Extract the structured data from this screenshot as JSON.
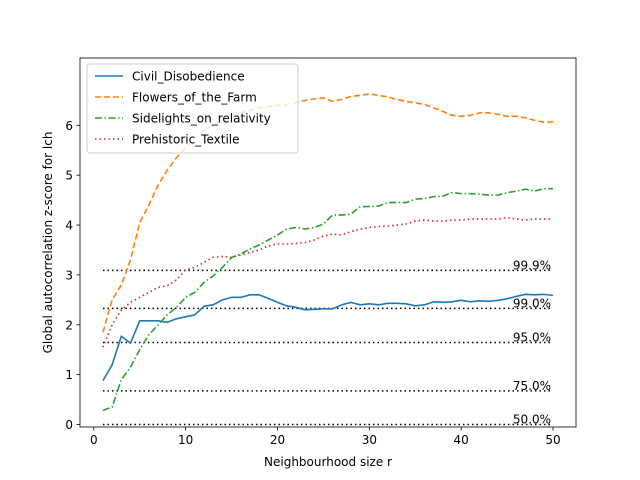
{
  "chart_data": {
    "type": "line",
    "title": "",
    "xlabel": "Neighbourhood size r",
    "ylabel": "Global autocorrelation z-score for lch",
    "xlim": [
      -1.5,
      52.5
    ],
    "ylim": [
      -0.05,
      7.35
    ],
    "xticks": [
      0,
      10,
      20,
      30,
      40,
      50
    ],
    "yticks": [
      0,
      1,
      2,
      3,
      4,
      5,
      6
    ],
    "grid": false,
    "legend_position": "top-left",
    "x": [
      1,
      2,
      3,
      4,
      5,
      6,
      7,
      8,
      9,
      10,
      11,
      12,
      13,
      14,
      15,
      16,
      17,
      18,
      19,
      20,
      21,
      22,
      23,
      24,
      25,
      26,
      27,
      28,
      29,
      30,
      31,
      32,
      33,
      34,
      35,
      36,
      37,
      38,
      39,
      40,
      41,
      42,
      43,
      44,
      45,
      46,
      47,
      48,
      49,
      50
    ],
    "series": [
      {
        "name": "Civil_Disobedience",
        "color": "#1f77b4",
        "style": "solid",
        "values": [
          0.88,
          1.2,
          1.77,
          1.63,
          2.08,
          2.08,
          2.08,
          2.05,
          2.12,
          2.16,
          2.2,
          2.37,
          2.4,
          2.5,
          2.55,
          2.55,
          2.6,
          2.6,
          2.53,
          2.45,
          2.38,
          2.35,
          2.3,
          2.31,
          2.32,
          2.32,
          2.4,
          2.45,
          2.4,
          2.42,
          2.4,
          2.43,
          2.43,
          2.42,
          2.38,
          2.4,
          2.46,
          2.45,
          2.46,
          2.49,
          2.46,
          2.48,
          2.47,
          2.49,
          2.52,
          2.57,
          2.61,
          2.6,
          2.61,
          2.59
        ]
      },
      {
        "name": "Flowers_of_the_Farm",
        "color": "#ff7f0e",
        "style": "dashed",
        "values": [
          1.85,
          2.5,
          2.8,
          3.3,
          4.05,
          4.4,
          4.8,
          5.1,
          5.35,
          5.55,
          5.75,
          5.9,
          6.0,
          6.1,
          6.15,
          6.25,
          6.3,
          6.35,
          6.38,
          6.4,
          6.42,
          6.45,
          6.5,
          6.53,
          6.55,
          6.48,
          6.52,
          6.58,
          6.6,
          6.63,
          6.6,
          6.57,
          6.52,
          6.48,
          6.45,
          6.42,
          6.35,
          6.28,
          6.2,
          6.18,
          6.2,
          6.25,
          6.25,
          6.22,
          6.18,
          6.18,
          6.15,
          6.1,
          6.06,
          6.07
        ]
      },
      {
        "name": "Sidelights_on_relativity",
        "color": "#2ca02c",
        "style": "dashdot",
        "values": [
          0.28,
          0.35,
          0.9,
          1.15,
          1.5,
          1.8,
          2.0,
          2.2,
          2.35,
          2.55,
          2.65,
          2.85,
          2.98,
          3.15,
          3.35,
          3.42,
          3.52,
          3.6,
          3.7,
          3.8,
          3.92,
          3.95,
          3.92,
          3.95,
          4.02,
          4.2,
          4.2,
          4.22,
          4.37,
          4.37,
          4.38,
          4.45,
          4.45,
          4.45,
          4.52,
          4.53,
          4.57,
          4.58,
          4.65,
          4.63,
          4.63,
          4.62,
          4.6,
          4.6,
          4.65,
          4.68,
          4.72,
          4.68,
          4.73,
          4.73
        ]
      },
      {
        "name": "Prehistoric_Textile",
        "color": "#d62728",
        "style": "dotted",
        "values": [
          1.55,
          2.0,
          2.3,
          2.45,
          2.55,
          2.65,
          2.75,
          2.78,
          2.9,
          3.1,
          3.15,
          3.25,
          3.35,
          3.37,
          3.35,
          3.4,
          3.45,
          3.5,
          3.58,
          3.62,
          3.62,
          3.63,
          3.65,
          3.7,
          3.78,
          3.82,
          3.8,
          3.87,
          3.92,
          3.95,
          3.97,
          3.98,
          4.0,
          4.02,
          4.08,
          4.1,
          4.08,
          4.08,
          4.1,
          4.1,
          4.12,
          4.12,
          4.12,
          4.12,
          4.15,
          4.12,
          4.1,
          4.12,
          4.12,
          4.12
        ]
      }
    ],
    "thresholds": [
      {
        "label": "99.9%",
        "value": 3.09
      },
      {
        "label": "99.0%",
        "value": 2.33
      },
      {
        "label": "95.0%",
        "value": 1.645
      },
      {
        "label": "75.0%",
        "value": 0.674
      },
      {
        "label": "50.0%",
        "value": 0.0
      }
    ],
    "threshold_x_range": [
      1,
      50
    ]
  }
}
